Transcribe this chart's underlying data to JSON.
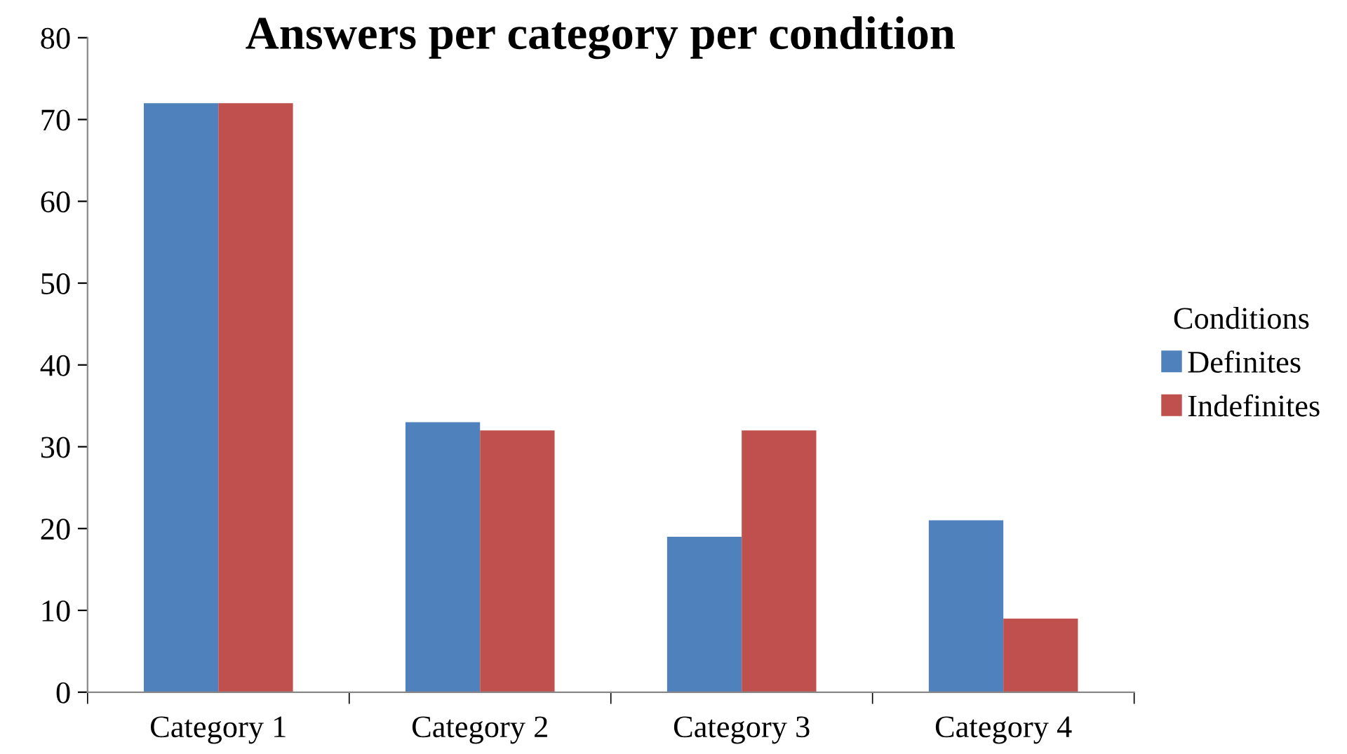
{
  "chart_data": {
    "type": "bar",
    "title": "Answers per category per condition",
    "categories": [
      "Category 1",
      "Category 2",
      "Category 3",
      "Category 4"
    ],
    "series": [
      {
        "name": "Definites",
        "color": "#4f81bd",
        "values": [
          72,
          33,
          19,
          21
        ]
      },
      {
        "name": "Indefinites",
        "color": "#c0504d",
        "values": [
          72,
          32,
          32,
          9
        ]
      }
    ],
    "legend_title": "Conditions",
    "legend": "right",
    "ylim": [
      0,
      80
    ],
    "yticks": [
      0,
      10,
      20,
      30,
      40,
      50,
      60,
      70,
      80
    ],
    "grid": false
  }
}
